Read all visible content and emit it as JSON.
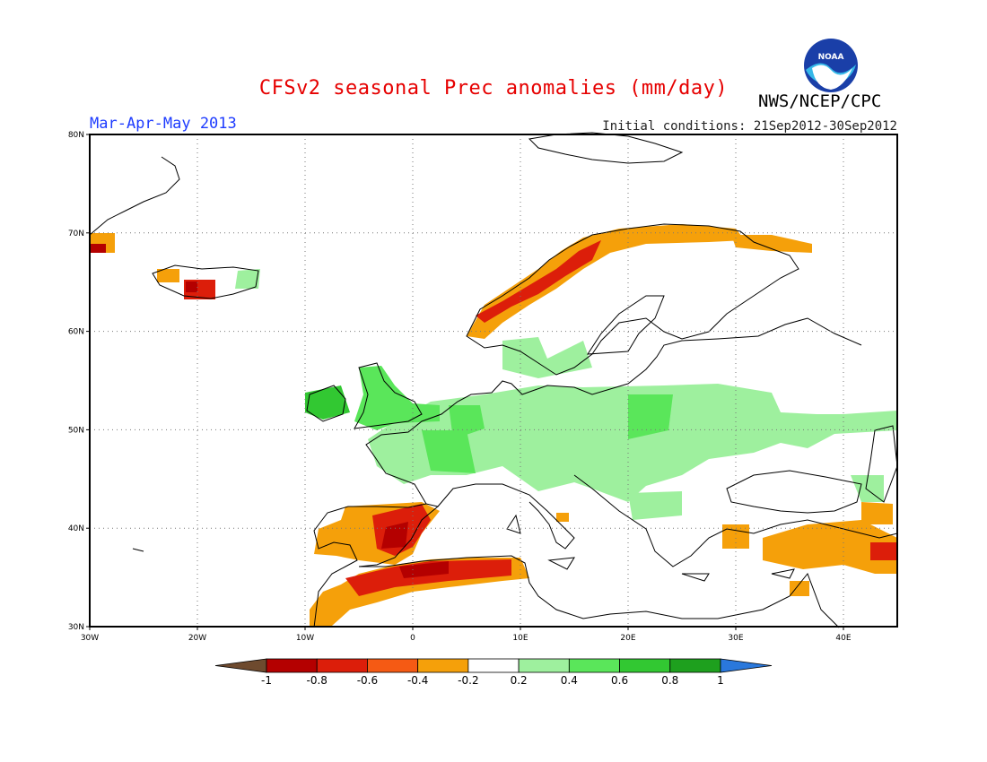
{
  "header": {
    "title": "CFSv2 seasonal Prec anomalies (mm/day)",
    "period": "Mar-Apr-May 2013",
    "initial_conditions": "Initial conditions: 21Sep2012-30Sep2012",
    "agency": "NWS/NCEP/CPC",
    "logo_text": "NOAA"
  },
  "map": {
    "region": "Europe",
    "lon_range": [
      -30,
      45
    ],
    "lat_range": [
      30,
      80
    ],
    "lat_labels": [
      "30N",
      "40N",
      "50N",
      "60N",
      "70N",
      "80N"
    ],
    "lon_labels": [
      "30W",
      "20W",
      "10W",
      "0",
      "10E",
      "20E",
      "30E",
      "40E"
    ],
    "gridlines": "dotted",
    "anomaly_regions": [
      {
        "region": "Iberia",
        "category": "-0.6 to -0.4"
      },
      {
        "region": "North Africa",
        "category": "-0.8 to -0.4"
      },
      {
        "region": "Norway coast",
        "category": "-0.8 to -0.2"
      },
      {
        "region": "Iceland",
        "category": "-0.8 to -0.2"
      },
      {
        "region": "Central Europe",
        "category": "0.2 to 0.6"
      },
      {
        "region": "British Isles",
        "category": "0.4 to 0.8"
      },
      {
        "region": "Turkey",
        "category": "-0.6 to -0.2"
      },
      {
        "region": "Northwest Russia",
        "category": "-0.4 to -0.2"
      }
    ]
  },
  "colorbar": {
    "labels": [
      "-1",
      "-0.8",
      "-0.6",
      "-0.4",
      "-0.2",
      "0.2",
      "0.4",
      "0.6",
      "0.8",
      "1"
    ],
    "colors": [
      "#6e4a2e",
      "#b40000",
      "#dc1e0a",
      "#f55a14",
      "#f5a00a",
      "#ffffff",
      "#9ef09e",
      "#5ae65a",
      "#32c832",
      "#1ea01e",
      "#2a78dc"
    ]
  },
  "colors": {
    "title": "#e60000",
    "period": "#1e3cff",
    "coast": "#000000"
  }
}
